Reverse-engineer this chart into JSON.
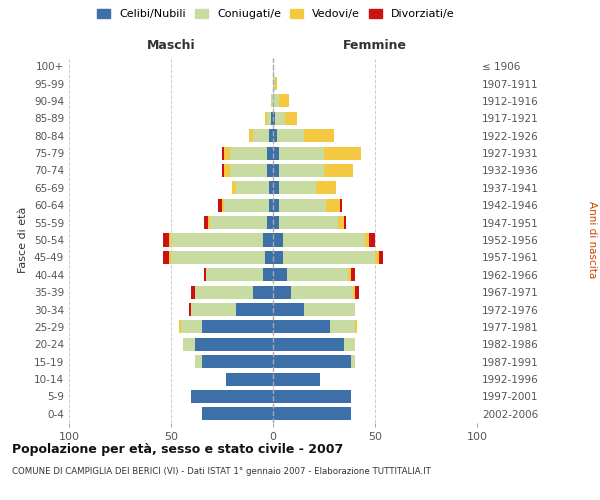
{
  "age_groups": [
    "0-4",
    "5-9",
    "10-14",
    "15-19",
    "20-24",
    "25-29",
    "30-34",
    "35-39",
    "40-44",
    "45-49",
    "50-54",
    "55-59",
    "60-64",
    "65-69",
    "70-74",
    "75-79",
    "80-84",
    "85-89",
    "90-94",
    "95-99",
    "100+"
  ],
  "birth_years": [
    "2002-2006",
    "1997-2001",
    "1992-1996",
    "1987-1991",
    "1982-1986",
    "1977-1981",
    "1972-1976",
    "1967-1971",
    "1962-1966",
    "1957-1961",
    "1952-1956",
    "1947-1951",
    "1942-1946",
    "1937-1941",
    "1932-1936",
    "1927-1931",
    "1922-1926",
    "1917-1921",
    "1912-1916",
    "1907-1911",
    "≤ 1906"
  ],
  "maschi": {
    "celibi": [
      35,
      40,
      23,
      35,
      38,
      35,
      18,
      10,
      5,
      4,
      5,
      3,
      2,
      2,
      3,
      3,
      2,
      1,
      0,
      0,
      0
    ],
    "coniugati": [
      0,
      0,
      0,
      3,
      6,
      10,
      22,
      28,
      28,
      46,
      45,
      28,
      22,
      16,
      18,
      18,
      8,
      2,
      1,
      0,
      0
    ],
    "vedovi": [
      0,
      0,
      0,
      0,
      0,
      1,
      0,
      0,
      0,
      1,
      1,
      1,
      1,
      2,
      3,
      3,
      2,
      1,
      0,
      0,
      0
    ],
    "divorziati": [
      0,
      0,
      0,
      0,
      0,
      0,
      1,
      2,
      1,
      3,
      3,
      2,
      2,
      0,
      1,
      1,
      0,
      0,
      0,
      0,
      0
    ]
  },
  "femmine": {
    "nubili": [
      38,
      38,
      23,
      38,
      35,
      28,
      15,
      9,
      7,
      5,
      5,
      3,
      3,
      3,
      3,
      3,
      2,
      1,
      0,
      0,
      0
    ],
    "coniugate": [
      0,
      0,
      0,
      2,
      5,
      12,
      25,
      30,
      30,
      45,
      40,
      29,
      23,
      18,
      22,
      22,
      13,
      5,
      3,
      1,
      0
    ],
    "vedove": [
      0,
      0,
      0,
      0,
      0,
      1,
      0,
      1,
      1,
      2,
      2,
      3,
      7,
      10,
      14,
      18,
      15,
      6,
      5,
      1,
      0
    ],
    "divorziate": [
      0,
      0,
      0,
      0,
      0,
      0,
      0,
      2,
      2,
      2,
      3,
      1,
      1,
      0,
      0,
      0,
      0,
      0,
      0,
      0,
      0
    ]
  },
  "colors": {
    "celibi": "#3d6fa8",
    "coniugati": "#c8dba0",
    "vedovi": "#f5c842",
    "divorziati": "#cc1111"
  },
  "xlim": 100,
  "title": "Popolazione per età, sesso e stato civile - 2007",
  "subtitle": "COMUNE DI CAMPIGLIA DEI BERICI (VI) - Dati ISTAT 1° gennaio 2007 - Elaborazione TUTTITALIA.IT",
  "ylabel_left": "Fasce di età",
  "ylabel_right": "Anni di nascita",
  "xlabel_left": "Maschi",
  "xlabel_right": "Femmine",
  "bg_color": "#ffffff",
  "grid_color": "#cccccc"
}
